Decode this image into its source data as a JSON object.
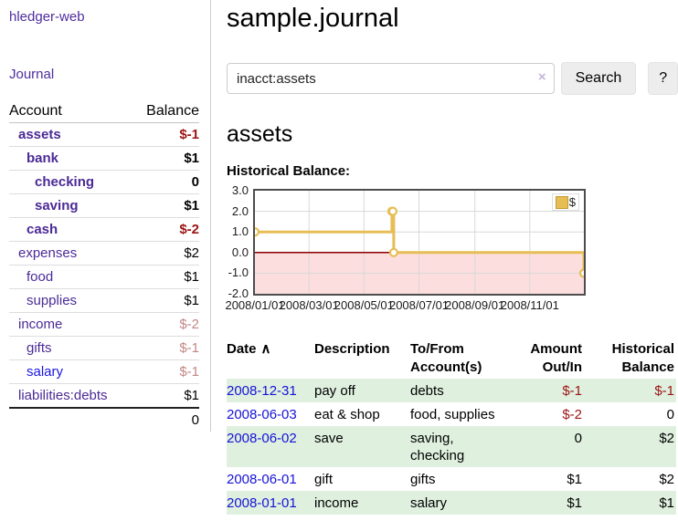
{
  "app": {
    "brand": "hledger-web",
    "nav_journal": "Journal"
  },
  "sidebar": {
    "accounts_header": {
      "account": "Account",
      "balance": "Balance"
    },
    "accounts": [
      {
        "name": "assets",
        "depth": 1,
        "bold": true,
        "balance": "$-1",
        "balance_style": "neg"
      },
      {
        "name": "bank",
        "depth": 2,
        "bold": true,
        "balance": "$1",
        "balance_style": "pos"
      },
      {
        "name": "checking",
        "depth": 3,
        "bold": true,
        "balance": "0",
        "balance_style": "pos"
      },
      {
        "name": "saving",
        "depth": 3,
        "bold": true,
        "balance": "$1",
        "balance_style": "pos"
      },
      {
        "name": "cash",
        "depth": 2,
        "bold": true,
        "balance": "$-2",
        "balance_style": "neg"
      },
      {
        "name": "expenses",
        "depth": 1,
        "bold": false,
        "balance": "$2",
        "balance_style": "pos"
      },
      {
        "name": "food",
        "depth": 2,
        "bold": false,
        "balance": "$1",
        "balance_style": "pos"
      },
      {
        "name": "supplies",
        "depth": 2,
        "bold": false,
        "balance": "$1",
        "balance_style": "pos"
      },
      {
        "name": "income",
        "depth": 1,
        "bold": false,
        "balance": "$-2",
        "balance_style": "negmuted"
      },
      {
        "name": "gifts",
        "depth": 2,
        "bold": false,
        "balance": "$-1",
        "balance_style": "negmuted"
      },
      {
        "name": "salary",
        "depth": 2,
        "bold": false,
        "link_style": "blue",
        "balance": "$-1",
        "balance_style": "negmuted"
      },
      {
        "name": "liabilities:debts",
        "depth": 1,
        "bold": false,
        "balance": "$1",
        "balance_style": "pos"
      }
    ],
    "total": "0"
  },
  "header": {
    "title": "sample.journal"
  },
  "search": {
    "value": "inacct:assets",
    "clear_icon": "×",
    "button": "Search",
    "help_button": "?"
  },
  "account_page": {
    "heading": "assets",
    "chart_title": "Historical Balance:"
  },
  "chart_data": {
    "type": "line",
    "step": true,
    "title": "Historical Balance:",
    "series": [
      {
        "name": "$",
        "color": "#e6be55",
        "points": [
          {
            "date": "2008/01/01",
            "value": 1
          },
          {
            "date": "2008/06/01",
            "value": 2
          },
          {
            "date": "2008/06/02",
            "value": 2
          },
          {
            "date": "2008/06/03",
            "value": 0
          },
          {
            "date": "2008/12/31",
            "value": -1
          }
        ]
      }
    ],
    "x_ticks": [
      "2008/01/01",
      "2008/03/01",
      "2008/05/01",
      "2008/07/01",
      "2008/09/01",
      "2008/11/01"
    ],
    "y_ticks": [
      "3.0",
      "2.0",
      "1.0",
      "0.0",
      "-1.0",
      "-2.0"
    ],
    "ylim": [
      -2,
      3
    ],
    "x_range": [
      "2008/01/01",
      "2008/12/31"
    ],
    "grid_color": "#d9d9d9",
    "border_color": "#4d4d4d",
    "negative_region_color": "#fcdede",
    "zero_line_color": "#8b0000",
    "legend_position": "top-right"
  },
  "register": {
    "sort_indicator": "∧",
    "columns": [
      {
        "label": "Date"
      },
      {
        "label": "Description"
      },
      {
        "label": "To/From Account(s)"
      },
      {
        "label": "Amount Out/In"
      },
      {
        "label": "Historical Balance"
      }
    ],
    "rows": [
      {
        "date": "2008-12-31",
        "description": "pay off",
        "accounts": "debts",
        "amount": "$-1",
        "amount_neg": true,
        "balance": "$-1",
        "balance_neg": true
      },
      {
        "date": "2008-06-03",
        "description": "eat & shop",
        "accounts": "food, supplies",
        "amount": "$-2",
        "amount_neg": true,
        "balance": "0",
        "balance_neg": false
      },
      {
        "date": "2008-06-02",
        "description": "save",
        "accounts": "saving, checking",
        "amount": "0",
        "amount_neg": false,
        "balance": "$2",
        "balance_neg": false
      },
      {
        "date": "2008-06-01",
        "description": "gift",
        "accounts": "gifts",
        "amount": "$1",
        "amount_neg": false,
        "balance": "$2",
        "balance_neg": false
      },
      {
        "date": "2008-01-01",
        "description": "income",
        "accounts": "salary",
        "amount": "$1",
        "amount_neg": false,
        "balance": "$1",
        "balance_neg": false
      }
    ]
  }
}
